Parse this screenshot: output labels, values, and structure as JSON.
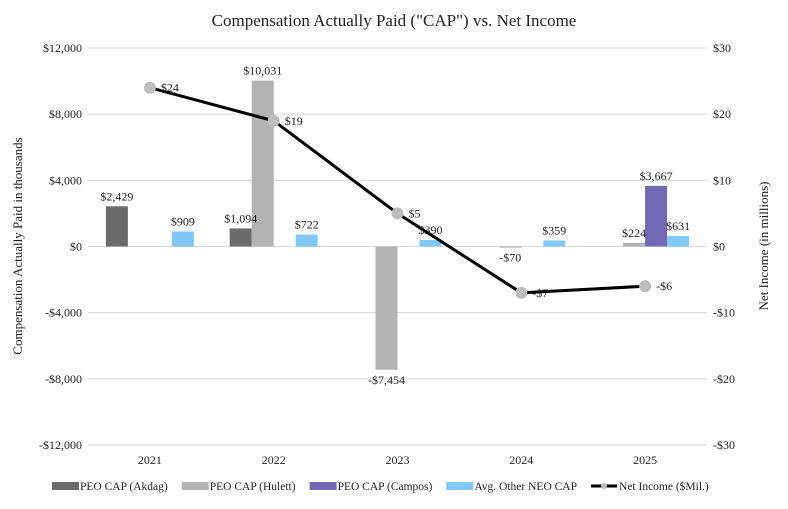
{
  "chart_data": {
    "type": "bar",
    "title": "Compensation Actually Paid (\"CAP\") vs. Net Income",
    "ylabel": "Compensation Actually Paid in thousands",
    "y2label": "Net Income (in millions)",
    "categories": [
      "2021",
      "2022",
      "2023",
      "2024",
      "2025"
    ],
    "ylim": [
      -12000,
      12000
    ],
    "yticks": [
      -12000,
      -8000,
      -4000,
      0,
      4000,
      8000,
      12000
    ],
    "ytick_labels": [
      "-$12,000",
      "-$8,000",
      "-$4,000",
      "$0",
      "$4,000",
      "$8,000",
      "$12,000"
    ],
    "y2lim": [
      -30,
      30
    ],
    "y2ticks": [
      -30,
      -20,
      -10,
      0,
      10,
      20,
      30
    ],
    "y2tick_labels": [
      "-$30",
      "-$20",
      "-$10",
      "$0",
      "$10",
      "$20",
      "$30"
    ],
    "grid": true,
    "legend_placement": "bottom",
    "series": [
      {
        "name": "PEO CAP (Akdag)",
        "color": "#6b6b6b",
        "values": [
          2429,
          1094,
          null,
          null,
          null
        ],
        "labels": [
          "$2,429",
          "$1,094",
          "",
          "",
          ""
        ]
      },
      {
        "name": "PEO CAP (Hulett)",
        "color": "#b3b3b3",
        "values": [
          null,
          10031,
          -7454,
          -70,
          224
        ],
        "labels": [
          "",
          "$10,031",
          "-$7,454",
          "-$70",
          "$224"
        ]
      },
      {
        "name": "PEO CAP (Campos)",
        "color": "#7268b4",
        "values": [
          null,
          null,
          null,
          null,
          3667
        ],
        "labels": [
          "",
          "",
          "",
          "",
          "$3,667"
        ]
      },
      {
        "name": "Avg. Other NEO CAP",
        "color": "#7fc8f8",
        "values": [
          909,
          722,
          390,
          359,
          631
        ],
        "labels": [
          "$909",
          "$722",
          "$390",
          "$359",
          "$631"
        ]
      }
    ],
    "line_series": {
      "name": "Net Income ($Mil.)",
      "color": "#000000",
      "marker_color": "#bdbdbd",
      "axis": "right",
      "values": [
        24,
        19,
        5,
        -7,
        -6
      ],
      "labels": [
        "$24",
        "$19",
        "$5",
        "-$7",
        "-$6"
      ]
    }
  }
}
